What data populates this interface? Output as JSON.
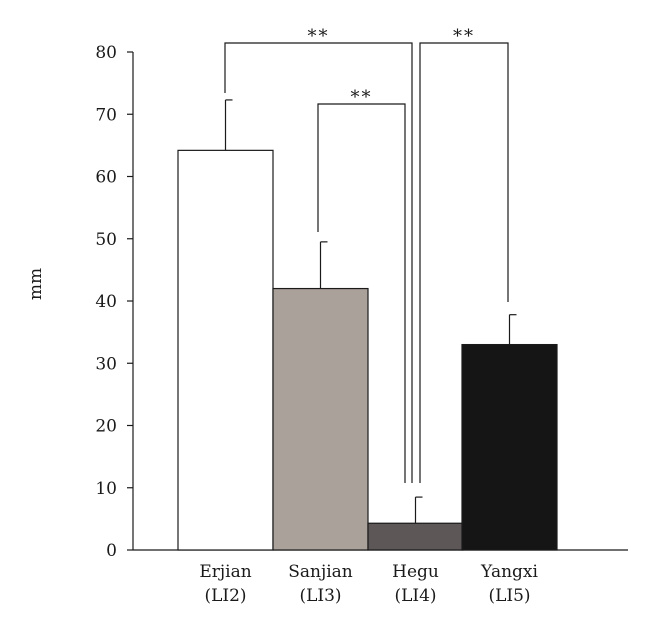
{
  "chart_data": {
    "type": "bar",
    "categories": [
      "Erjian\n(LI2)",
      "Sanjian\n(LI3)",
      "Hegu\n(LI4)",
      "Yangxi\n(LI5)"
    ],
    "category_lines": [
      [
        "Erjian",
        "(LI2)"
      ],
      [
        "Sanjian",
        "(LI3)"
      ],
      [
        "Hegu",
        "(LI4)"
      ],
      [
        "Yangxi",
        "(LI5)"
      ]
    ],
    "values": [
      64.2,
      42.0,
      4.3,
      33.0
    ],
    "error_upper": [
      72.3,
      49.5,
      8.5,
      37.8
    ],
    "colors": [
      "#ffffff",
      "#aba19b",
      "#5d5757",
      "#151515"
    ],
    "ylabel": "mm",
    "xlabel": "",
    "title": "",
    "ylim": [
      0,
      80
    ],
    "yticks": [
      0,
      10,
      20,
      30,
      40,
      50,
      60,
      70,
      80
    ],
    "grid": false,
    "significance": [
      {
        "from": 0,
        "to": 2,
        "label": "**"
      },
      {
        "from": 1,
        "to": 2,
        "label": "**"
      },
      {
        "from": 2,
        "to": 3,
        "label": "**"
      }
    ]
  }
}
